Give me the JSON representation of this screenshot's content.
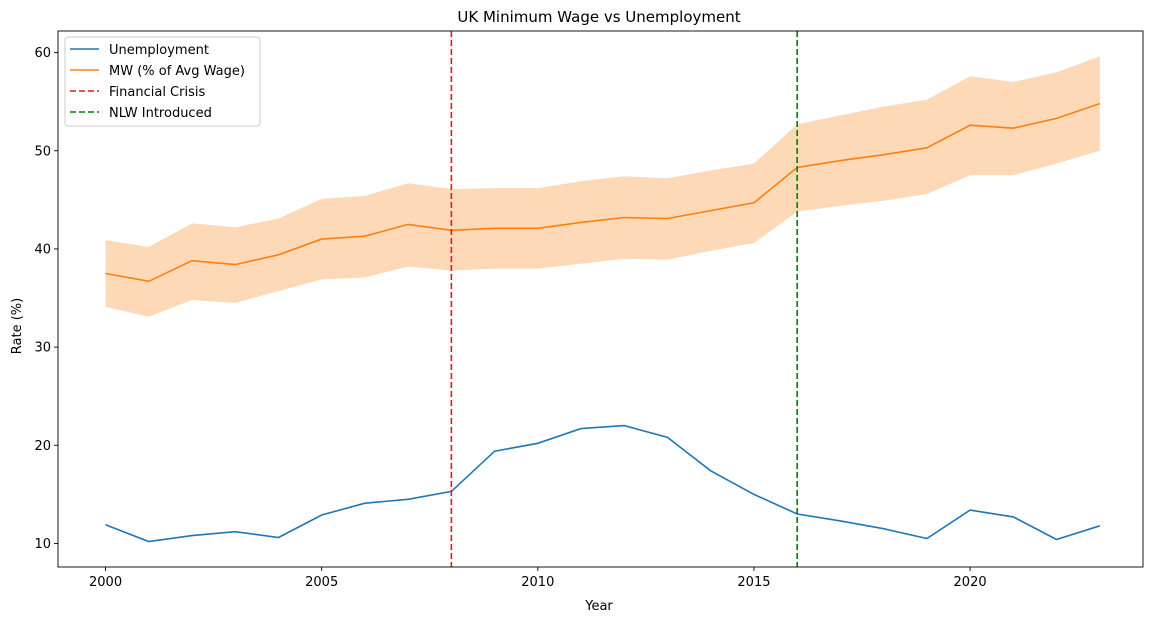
{
  "chart_data": {
    "type": "line",
    "title": "UK Minimum Wage vs Unemployment",
    "xlabel": "Year",
    "ylabel": "Rate (%)",
    "xlim": [
      1998.9,
      2024.0
    ],
    "ylim": [
      7.6,
      62.2
    ],
    "x_ticks": [
      2000,
      2005,
      2010,
      2015,
      2020
    ],
    "y_ticks": [
      10,
      20,
      30,
      40,
      50,
      60
    ],
    "grid": false,
    "legend_position": "top-left",
    "x": [
      2000,
      2001,
      2002,
      2003,
      2004,
      2005,
      2006,
      2007,
      2008,
      2009,
      2010,
      2011,
      2012,
      2013,
      2014,
      2015,
      2016,
      2017,
      2018,
      2019,
      2020,
      2021,
      2022,
      2023
    ],
    "series": [
      {
        "name": "Unemployment",
        "color": "#1f77b4",
        "values": [
          11.9,
          10.2,
          10.8,
          11.2,
          10.6,
          12.9,
          14.1,
          14.5,
          15.3,
          19.4,
          20.2,
          21.7,
          22.0,
          20.8,
          17.4,
          15.0,
          13.0,
          12.3,
          11.5,
          10.5,
          13.4,
          12.7,
          10.4,
          11.8
        ]
      },
      {
        "name": "MW (% of Avg Wage)",
        "color": "#ff7f0e",
        "band_color": "#fdd9b8",
        "values": [
          37.5,
          36.7,
          38.8,
          38.4,
          39.4,
          41.0,
          41.3,
          42.5,
          41.9,
          42.1,
          42.1,
          42.7,
          43.2,
          43.1,
          43.9,
          44.7,
          48.3,
          49.0,
          49.6,
          50.3,
          52.6,
          52.3,
          53.3,
          54.8
        ],
        "band_low": [
          34.1,
          33.1,
          34.8,
          34.5,
          35.7,
          36.9,
          37.1,
          38.2,
          37.8,
          38.0,
          38.0,
          38.5,
          39.0,
          38.9,
          39.8,
          40.6,
          43.8,
          44.4,
          44.9,
          45.6,
          47.5,
          47.5,
          48.7,
          50.0
        ],
        "band_high": [
          40.9,
          40.2,
          42.6,
          42.2,
          43.1,
          45.1,
          45.4,
          46.7,
          46.1,
          46.2,
          46.2,
          46.9,
          47.4,
          47.2,
          48.0,
          48.7,
          52.7,
          53.6,
          54.5,
          55.2,
          57.6,
          57.0,
          58.0,
          59.6
        ]
      }
    ],
    "vlines": [
      {
        "name": "Financial Crisis",
        "x": 2008,
        "color": "#e31a1c"
      },
      {
        "name": "NLW Introduced",
        "x": 2016,
        "color": "#008000"
      }
    ]
  }
}
